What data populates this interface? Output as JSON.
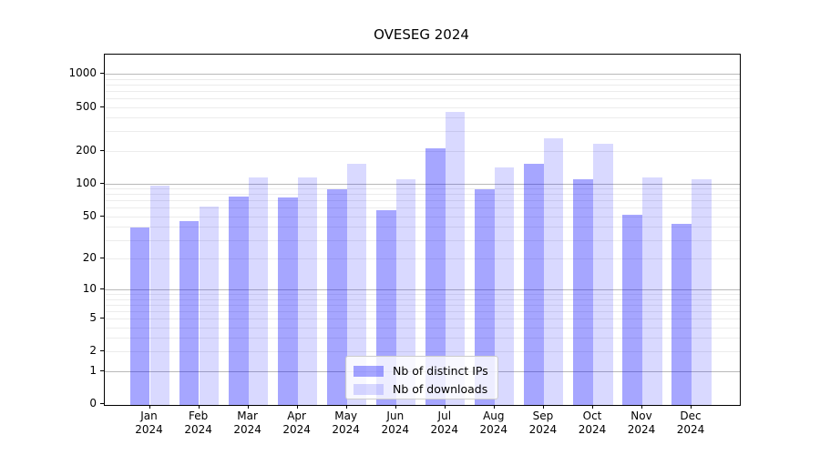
{
  "chart_data": {
    "type": "bar",
    "title": "OVESEG 2024",
    "categories": [
      "Jan",
      "Feb",
      "Mar",
      "Apr",
      "May",
      "Jun",
      "Jul",
      "Aug",
      "Sep",
      "Oct",
      "Nov",
      "Dec"
    ],
    "year_label": "2024",
    "series": [
      {
        "name": "Nb of distinct IPs",
        "color": "rgba(0,0,255,0.35)",
        "color_hex": "#a6a6ff",
        "values": [
          40,
          46,
          78,
          76,
          90,
          58,
          214,
          90,
          155,
          112,
          53,
          43
        ]
      },
      {
        "name": "Nb of downloads",
        "color": "rgba(0,0,255,0.15)",
        "color_hex": "#d9d9ff",
        "values": [
          97,
          63,
          115,
          117,
          156,
          112,
          457,
          143,
          262,
          238,
          117,
          111
        ]
      }
    ],
    "yscale": "log1p",
    "yticks": [
      0,
      1,
      2,
      5,
      10,
      20,
      50,
      100,
      200,
      500,
      1000
    ],
    "major_grid_values": [
      1,
      10,
      100,
      1000
    ],
    "ylim_top": 1480,
    "grid": true,
    "legend_position": "lower center",
    "xlabel": "",
    "ylabel": ""
  }
}
